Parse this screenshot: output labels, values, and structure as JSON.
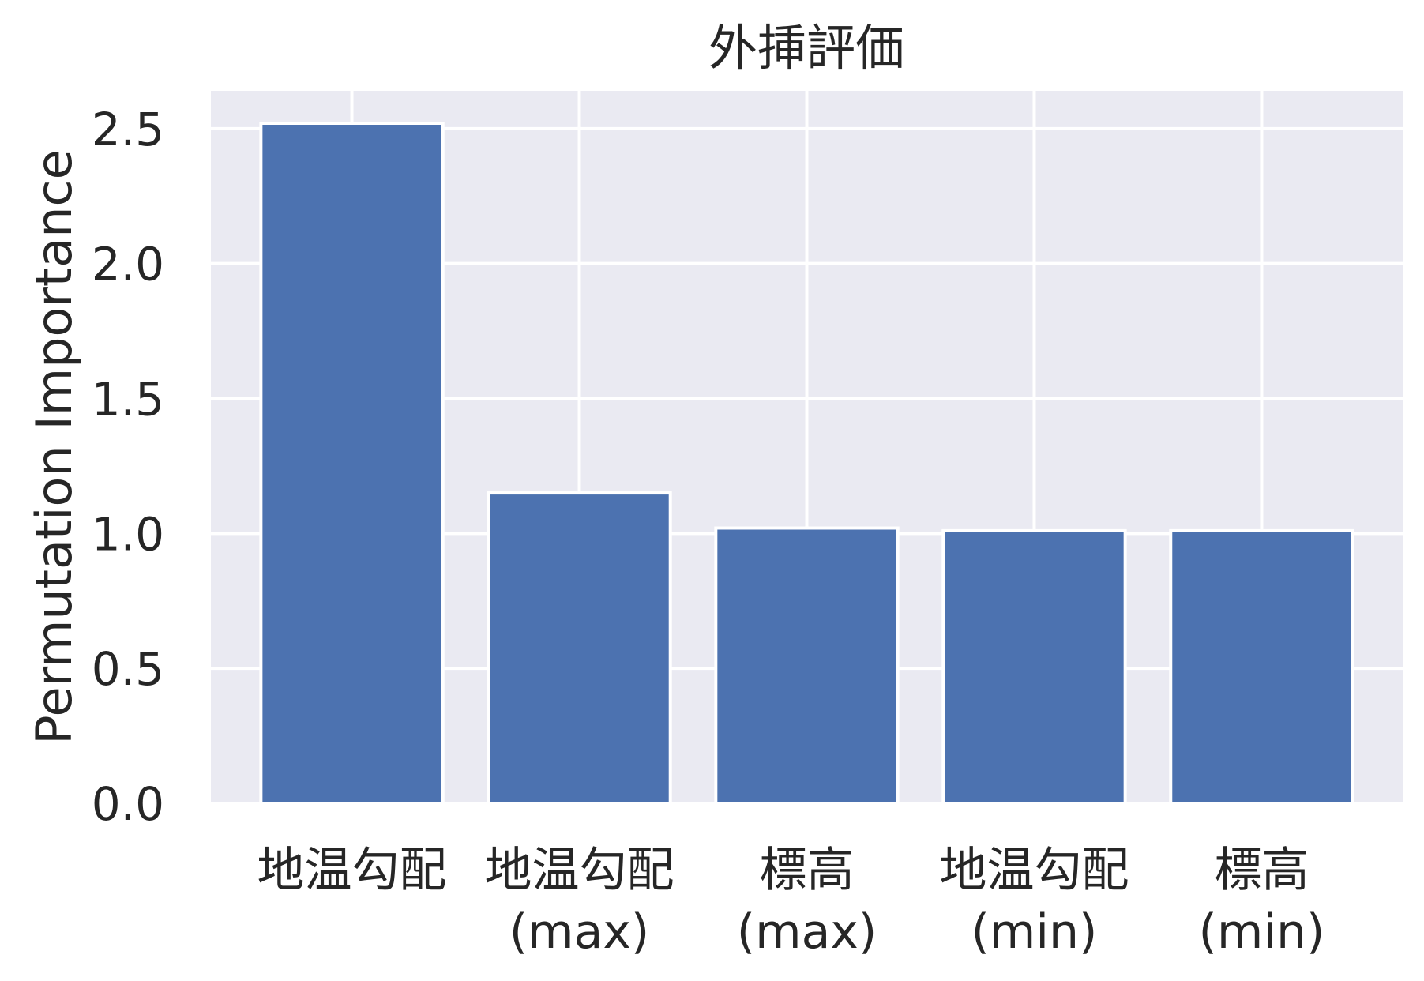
{
  "chart_data": {
    "type": "bar",
    "title": "外挿評価",
    "xlabel": "",
    "ylabel": "Permutation Importance",
    "categories": [
      [
        "地温勾配"
      ],
      [
        "地温勾配",
        "(max)"
      ],
      [
        "標高",
        "(max)"
      ],
      [
        "地温勾配",
        "(min)"
      ],
      [
        "標高",
        "(min)"
      ]
    ],
    "values": [
      2.52,
      1.15,
      1.02,
      1.01,
      1.01
    ],
    "ylim": [
      0,
      2.64
    ],
    "yticks": [
      "0.0",
      "0.5",
      "1.0",
      "1.5",
      "2.0",
      "2.5"
    ],
    "grid": true,
    "colors": {
      "bar": "#4c72b0",
      "plot_background": "#eaeaf2",
      "grid": "#ffffff",
      "text": "#262626"
    }
  }
}
